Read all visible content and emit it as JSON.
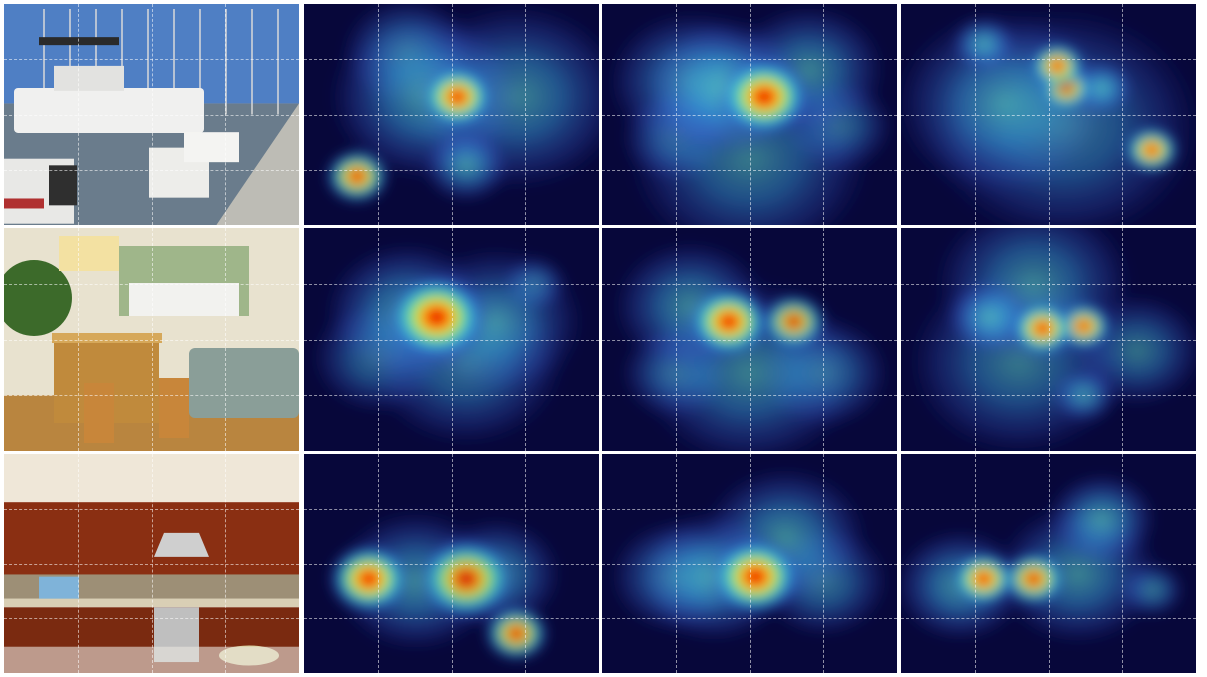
{
  "figure": {
    "rows": [
      {
        "scene": "harbor-boats",
        "maps": [
          {
            "blobs": [
              [
                0.52,
                0.42,
                0.08,
                0.95
              ],
              [
                0.42,
                0.42,
                0.18,
                0.55
              ],
              [
                0.72,
                0.42,
                0.2,
                0.45
              ],
              [
                0.18,
                0.78,
                0.07,
                0.85
              ],
              [
                0.55,
                0.73,
                0.08,
                0.6
              ],
              [
                0.35,
                0.22,
                0.12,
                0.35
              ]
            ]
          },
          {
            "blobs": [
              [
                0.55,
                0.42,
                0.1,
                0.95
              ],
              [
                0.42,
                0.38,
                0.15,
                0.7
              ],
              [
                0.3,
                0.35,
                0.15,
                0.45
              ],
              [
                0.7,
                0.3,
                0.14,
                0.45
              ],
              [
                0.5,
                0.7,
                0.22,
                0.35
              ],
              [
                0.25,
                0.6,
                0.1,
                0.3
              ],
              [
                0.8,
                0.55,
                0.1,
                0.3
              ]
            ]
          },
          {
            "blobs": [
              [
                0.53,
                0.28,
                0.06,
                0.9
              ],
              [
                0.56,
                0.38,
                0.05,
                0.8
              ],
              [
                0.85,
                0.66,
                0.06,
                0.95
              ],
              [
                0.28,
                0.18,
                0.06,
                0.7
              ],
              [
                0.68,
                0.38,
                0.06,
                0.7
              ],
              [
                0.35,
                0.45,
                0.2,
                0.4
              ],
              [
                0.55,
                0.55,
                0.25,
                0.35
              ]
            ]
          }
        ]
      },
      {
        "scene": "living-room-kitchen-bar",
        "maps": [
          {
            "blobs": [
              [
                0.45,
                0.4,
                0.11,
                0.95
              ],
              [
                0.35,
                0.38,
                0.15,
                0.55
              ],
              [
                0.65,
                0.42,
                0.16,
                0.4
              ],
              [
                0.25,
                0.58,
                0.12,
                0.3
              ],
              [
                0.55,
                0.6,
                0.18,
                0.35
              ],
              [
                0.78,
                0.25,
                0.06,
                0.3
              ]
            ]
          },
          {
            "blobs": [
              [
                0.43,
                0.42,
                0.09,
                0.95
              ],
              [
                0.65,
                0.42,
                0.06,
                0.75
              ],
              [
                0.3,
                0.35,
                0.14,
                0.45
              ],
              [
                0.5,
                0.65,
                0.2,
                0.4
              ],
              [
                0.75,
                0.65,
                0.12,
                0.35
              ],
              [
                0.25,
                0.65,
                0.1,
                0.3
              ]
            ]
          },
          {
            "blobs": [
              [
                0.48,
                0.45,
                0.07,
                0.95
              ],
              [
                0.62,
                0.44,
                0.06,
                0.9
              ],
              [
                0.3,
                0.4,
                0.08,
                0.65
              ],
              [
                0.62,
                0.75,
                0.06,
                0.5
              ],
              [
                0.45,
                0.25,
                0.18,
                0.4
              ],
              [
                0.4,
                0.6,
                0.2,
                0.35
              ],
              [
                0.8,
                0.55,
                0.12,
                0.3
              ]
            ]
          }
        ]
      },
      {
        "scene": "modern-kitchen",
        "maps": [
          {
            "blobs": [
              [
                0.22,
                0.57,
                0.09,
                0.95
              ],
              [
                0.55,
                0.57,
                0.09,
                0.75
              ],
              [
                0.72,
                0.82,
                0.06,
                0.8
              ],
              [
                0.38,
                0.58,
                0.15,
                0.5
              ],
              [
                0.65,
                0.55,
                0.12,
                0.45
              ]
            ]
          },
          {
            "blobs": [
              [
                0.52,
                0.56,
                0.1,
                0.95
              ],
              [
                0.38,
                0.56,
                0.14,
                0.6
              ],
              [
                0.62,
                0.38,
                0.15,
                0.5
              ],
              [
                0.25,
                0.56,
                0.12,
                0.4
              ],
              [
                0.75,
                0.58,
                0.12,
                0.35
              ]
            ]
          },
          {
            "blobs": [
              [
                0.28,
                0.57,
                0.07,
                0.95
              ],
              [
                0.45,
                0.57,
                0.07,
                0.85
              ],
              [
                0.68,
                0.3,
                0.1,
                0.6
              ],
              [
                0.2,
                0.6,
                0.12,
                0.55
              ],
              [
                0.6,
                0.55,
                0.15,
                0.45
              ],
              [
                0.85,
                0.62,
                0.06,
                0.4
              ]
            ]
          }
        ]
      }
    ],
    "colors": {
      "map_background": "#07073a",
      "divider": "#ffffff"
    }
  }
}
